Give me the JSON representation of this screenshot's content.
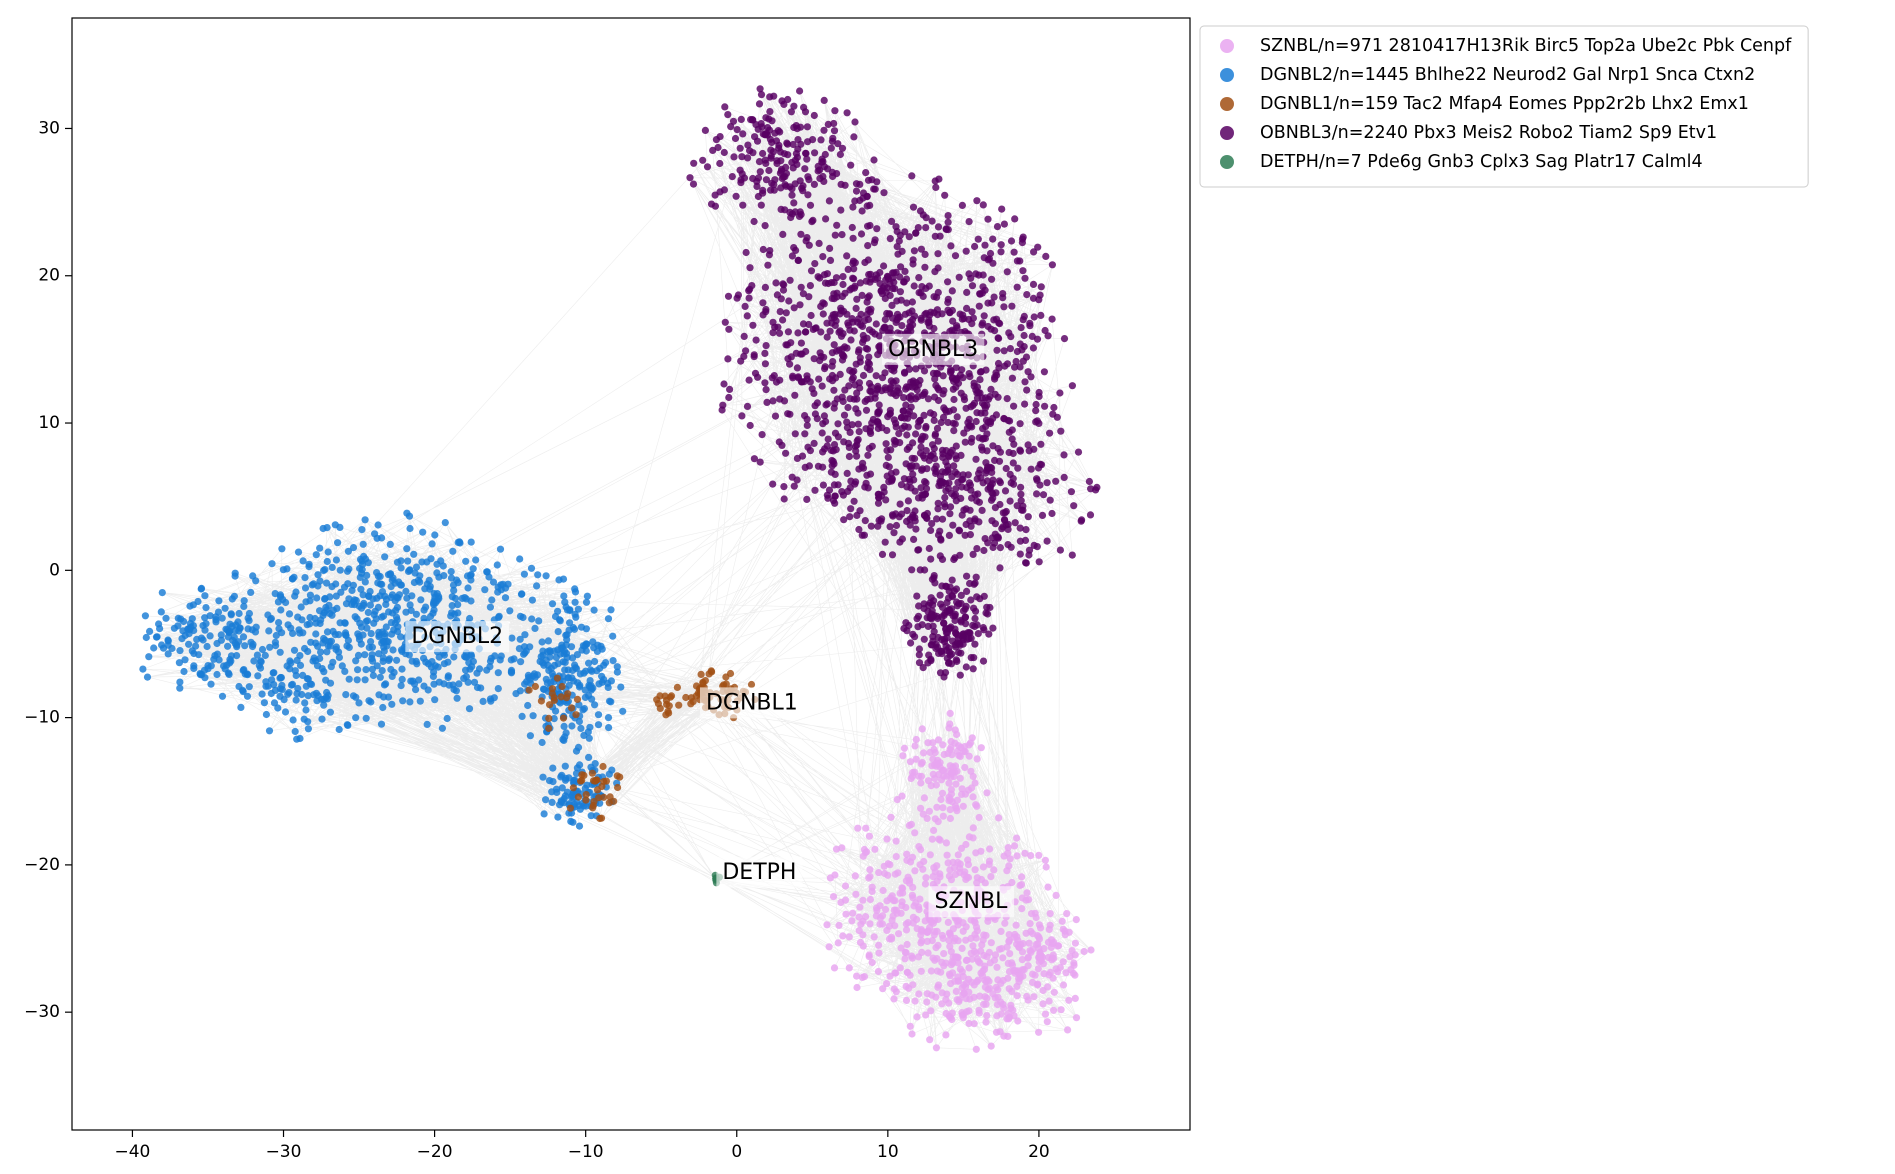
{
  "chart_data": {
    "type": "scatter",
    "title": "",
    "xlabel": "",
    "ylabel": "",
    "xlim": [
      -44,
      30
    ],
    "ylim": [
      -38,
      37.5
    ],
    "xticks": [
      -40,
      -30,
      -20,
      -10,
      0,
      10,
      20
    ],
    "yticks": [
      -30,
      -20,
      -10,
      0,
      10,
      20,
      30
    ],
    "tick_labels_x": [
      "−40",
      "−30",
      "−20",
      "−10",
      "0",
      "10",
      "20"
    ],
    "tick_labels_y": [
      "−30",
      "−20",
      "−10",
      "0",
      "10",
      "20",
      "30"
    ],
    "grid": false,
    "legend_position": "outside-top-right",
    "has_edges": true,
    "edge_color": "#808080",
    "series": [
      {
        "name": "SZNBL/n=971 2810417H13Rik Birc5 Top2a Ube2c Pbk Cenpf",
        "label": "SZNBL",
        "count": 971,
        "color": "#e8a5f0",
        "label_pos": [
          15.5,
          -22.5
        ],
        "regions": [
          {
            "cx": 13.5,
            "cy": -23,
            "rx": 8.5,
            "ry": 7.5,
            "frac": 0.55
          },
          {
            "cx": 16.5,
            "cy": -29,
            "rx": 6.5,
            "ry": 4,
            "frac": 0.2
          },
          {
            "cx": 20.5,
            "cy": -26,
            "rx": 3,
            "ry": 3.5,
            "frac": 0.1
          },
          {
            "cx": 13.5,
            "cy": -13.5,
            "rx": 3.5,
            "ry": 4,
            "frac": 0.15
          }
        ]
      },
      {
        "name": "DGNBL2/n=1445 Bhlhe22 Neurod2 Gal Nrp1 Snca Ctxn2",
        "label": "DGNBL2",
        "count": 1445,
        "color": "#1a7dd6",
        "label_pos": [
          -18.5,
          -4.5
        ],
        "regions": [
          {
            "cx": -22.5,
            "cy": -3.5,
            "rx": 12,
            "ry": 7.5,
            "frac": 0.55
          },
          {
            "cx": -35,
            "cy": -5,
            "rx": 5,
            "ry": 4.5,
            "frac": 0.12
          },
          {
            "cx": -11,
            "cy": -7,
            "rx": 4,
            "ry": 6,
            "frac": 0.18
          },
          {
            "cx": -10.5,
            "cy": -15,
            "rx": 3,
            "ry": 2.5,
            "frac": 0.08
          },
          {
            "cx": -29,
            "cy": -8,
            "rx": 5,
            "ry": 3.5,
            "frac": 0.07
          }
        ]
      },
      {
        "name": "DGNBL1/n=159 Tac2 Mfap4 Eomes Ppp2r2b Lhx2 Emx1",
        "label": "DGNBL1",
        "count": 159,
        "color": "#a14f13",
        "label_pos": [
          1,
          -9
        ],
        "regions": [
          {
            "cx": -1.5,
            "cy": -8.5,
            "rx": 2.8,
            "ry": 1.8,
            "frac": 0.5
          },
          {
            "cx": -9.5,
            "cy": -15,
            "rx": 2,
            "ry": 2,
            "frac": 0.25
          },
          {
            "cx": -12,
            "cy": -9,
            "rx": 2,
            "ry": 2,
            "frac": 0.15
          },
          {
            "cx": -4.5,
            "cy": -9,
            "rx": 1,
            "ry": 0.9,
            "frac": 0.1
          }
        ]
      },
      {
        "name": "OBNBL3/n=2240 Pbx3 Meis2 Robo2 Tiam2 Sp9 Etv1",
        "label": "OBNBL3",
        "count": 2240,
        "color": "#580063",
        "label_pos": [
          13,
          15
        ],
        "regions": [
          {
            "cx": 10.5,
            "cy": 14.5,
            "rx": 12,
            "ry": 12.5,
            "frac": 0.6
          },
          {
            "cx": 3,
            "cy": 28,
            "rx": 7,
            "ry": 5,
            "frac": 0.12
          },
          {
            "cx": 15,
            "cy": 5,
            "rx": 9,
            "ry": 7,
            "frac": 0.18
          },
          {
            "cx": 14,
            "cy": -4,
            "rx": 3,
            "ry": 4,
            "frac": 0.1
          }
        ]
      },
      {
        "name": "DETPH/n=7 Pde6g Gnb3 Cplx3 Sag Platr17 Calml4",
        "label": "DETPH",
        "count": 7,
        "color": "#2e7d55",
        "label_pos": [
          1.5,
          -20.5
        ],
        "regions": [
          {
            "cx": -1.2,
            "cy": -21,
            "rx": 0.4,
            "ry": 0.4,
            "frac": 1.0
          }
        ]
      }
    ]
  }
}
